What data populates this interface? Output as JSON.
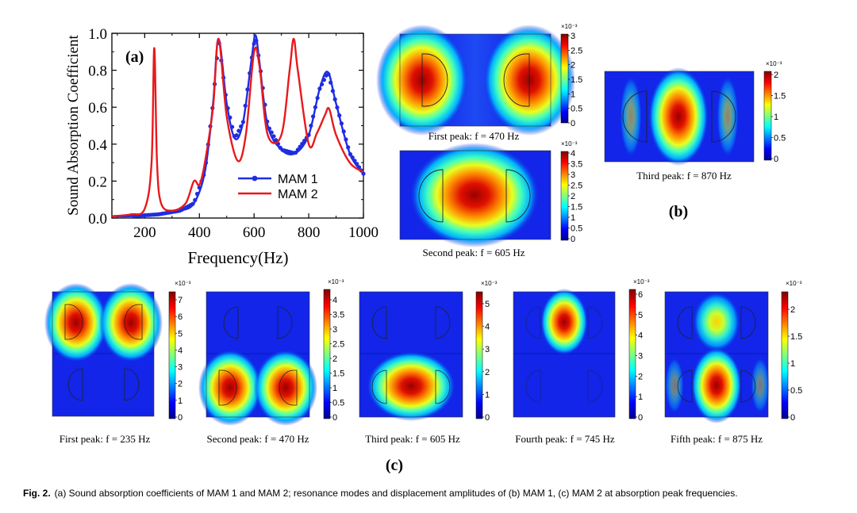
{
  "chart_data": {
    "type": "line",
    "panel_label": "(a)",
    "xlabel": "Frequency(Hz)",
    "ylabel": "Sound Absorption Coefficient",
    "xlim": [
      80,
      1000
    ],
    "ylim": [
      0.0,
      1.0
    ],
    "xticks": [
      200,
      400,
      600,
      800,
      1000
    ],
    "yticks": [
      "0.0",
      "0.2",
      "0.4",
      "0.6",
      "0.8",
      "1.0"
    ],
    "series": [
      {
        "name": "MAM 1",
        "color": "#1f2de0",
        "marker": "circle",
        "x": [
          80,
          150,
          250,
          330,
          380,
          420,
          450,
          470,
          500,
          530,
          560,
          590,
          605,
          620,
          650,
          700,
          750,
          800,
          840,
          870,
          900,
          950,
          1000
        ],
        "y": [
          0.01,
          0.01,
          0.02,
          0.04,
          0.08,
          0.25,
          0.62,
          0.97,
          0.62,
          0.43,
          0.52,
          0.85,
          0.99,
          0.84,
          0.5,
          0.37,
          0.35,
          0.45,
          0.7,
          0.79,
          0.62,
          0.35,
          0.24
        ]
      },
      {
        "name": "MAM 2",
        "color": "#e8191c",
        "x": [
          80,
          150,
          200,
          225,
          235,
          245,
          260,
          300,
          350,
          380,
          400,
          420,
          450,
          470,
          500,
          540,
          570,
          600,
          620,
          650,
          700,
          730,
          745,
          760,
          800,
          830,
          860,
          875,
          900,
          950,
          1000
        ],
        "y": [
          0.01,
          0.02,
          0.05,
          0.3,
          0.92,
          0.3,
          0.08,
          0.04,
          0.08,
          0.2,
          0.18,
          0.3,
          0.6,
          0.97,
          0.55,
          0.31,
          0.45,
          0.9,
          0.82,
          0.45,
          0.45,
          0.8,
          0.97,
          0.8,
          0.4,
          0.46,
          0.56,
          0.59,
          0.45,
          0.3,
          0.25
        ]
      }
    ]
  },
  "colorbar_exp": "×10⁻³",
  "panel_b": {
    "label": "(b)",
    "maps": [
      {
        "caption": "First peak: f = 470 Hz",
        "ticks": [
          "3",
          "2.5",
          "2",
          "1.5",
          "1",
          "0.5",
          "0"
        ]
      },
      {
        "caption": "Second peak: f = 605 Hz",
        "ticks": [
          "4",
          "3.5",
          "3",
          "2.5",
          "2",
          "1.5",
          "1",
          "0.5",
          "0"
        ]
      },
      {
        "caption": "Third peak: f = 870 Hz",
        "ticks": [
          "2",
          "1.5",
          "1",
          "0.5",
          "0"
        ]
      }
    ]
  },
  "panel_c": {
    "label": "(c)",
    "maps": [
      {
        "caption": "First peak: f = 235 Hz",
        "ticks": [
          "7",
          "6",
          "5",
          "4",
          "3",
          "2",
          "1",
          "0"
        ]
      },
      {
        "caption": "Second peak: f = 470 Hz",
        "ticks": [
          "4",
          "3.5",
          "3",
          "2.5",
          "2",
          "1.5",
          "1",
          "0.5",
          "0"
        ]
      },
      {
        "caption": "Third peak: f = 605 Hz",
        "ticks": [
          "5",
          "4",
          "3",
          "2",
          "1",
          "0"
        ]
      },
      {
        "caption": "Fourth peak: f = 745 Hz",
        "ticks": [
          "6",
          "5",
          "4",
          "3",
          "2",
          "1",
          "0"
        ]
      },
      {
        "caption": "Fifth peak: f = 875 Hz",
        "ticks": [
          "2",
          "1.5",
          "1",
          "0.5",
          "0"
        ]
      }
    ]
  },
  "figure_caption": {
    "lead": "Fig. 2.",
    "text": "(a) Sound absorption coefficients of MAM 1 and MAM 2; resonance modes and displacement amplitudes of (b) MAM 1, (c) MAM 2 at absorption peak frequencies."
  }
}
